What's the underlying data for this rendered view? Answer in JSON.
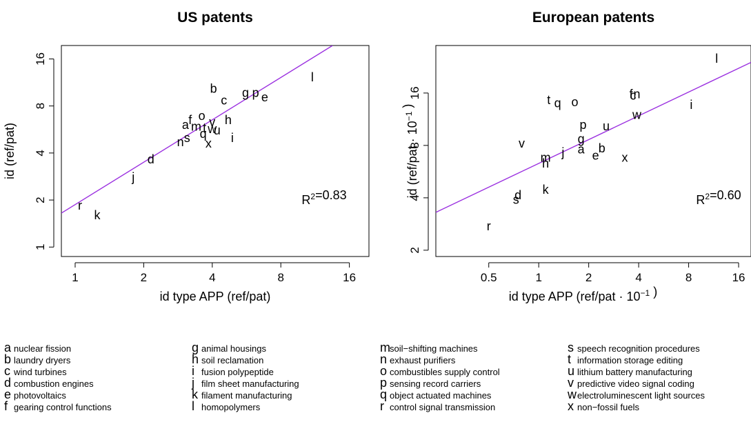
{
  "chart_data": [
    {
      "type": "scatter",
      "title": "US patents",
      "xlabel": "id type APP (ref/pat)",
      "ylabel": "id (ref/pat)",
      "x_scale": "log",
      "y_scale": "log",
      "xlim": [
        0.87,
        19.5
      ],
      "ylim": [
        0.87,
        19.5
      ],
      "xticks": [
        1,
        2,
        4,
        8,
        16
      ],
      "yticks": [
        1,
        2,
        4,
        8,
        16
      ],
      "xtick_labels": [
        "1",
        "2",
        "4",
        "8",
        "16"
      ],
      "ytick_labels": [
        "1",
        "2",
        "4",
        "8",
        "16"
      ],
      "annotation": "R²=0.83",
      "fit_color": "#9b30e0",
      "fit_line": [
        [
          0.87,
          1.65
        ],
        [
          13.5,
          19.5
        ]
      ],
      "points": [
        {
          "label": "a",
          "x": 3.05,
          "y": 6.05
        },
        {
          "label": "b",
          "x": 4.05,
          "y": 10.35
        },
        {
          "label": "c",
          "x": 4.5,
          "y": 8.7
        },
        {
          "label": "d",
          "x": 2.15,
          "y": 3.65
        },
        {
          "label": "e",
          "x": 6.8,
          "y": 9.1
        },
        {
          "label": "f",
          "x": 3.2,
          "y": 6.5
        },
        {
          "label": "g",
          "x": 5.6,
          "y": 9.7
        },
        {
          "label": "h",
          "x": 4.7,
          "y": 6.5
        },
        {
          "label": "i",
          "x": 4.9,
          "y": 5.0
        },
        {
          "label": "j",
          "x": 1.8,
          "y": 2.8
        },
        {
          "label": "k",
          "x": 1.25,
          "y": 1.6
        },
        {
          "label": "l",
          "x": 11.0,
          "y": 12.2
        },
        {
          "label": "m",
          "x": 3.4,
          "y": 5.9
        },
        {
          "label": "n",
          "x": 2.9,
          "y": 4.7
        },
        {
          "label": "o",
          "x": 3.6,
          "y": 6.9
        },
        {
          "label": "p",
          "x": 6.2,
          "y": 9.7
        },
        {
          "label": "q",
          "x": 3.65,
          "y": 5.3
        },
        {
          "label": "r",
          "x": 1.05,
          "y": 1.85
        },
        {
          "label": "s",
          "x": 3.1,
          "y": 5.0
        },
        {
          "label": "t",
          "x": 3.7,
          "y": 5.8
        },
        {
          "label": "u",
          "x": 4.2,
          "y": 5.6
        },
        {
          "label": "v",
          "x": 4.0,
          "y": 6.3
        },
        {
          "label": "w",
          "x": 4.0,
          "y": 5.7
        },
        {
          "label": "x",
          "x": 3.85,
          "y": 4.6
        }
      ]
    },
    {
      "type": "scatter",
      "title": "European patents",
      "xlabel": "id type APP (ref/pat · 10⁻¹ )",
      "ylabel": "id (ref/pat · 10⁻¹ )",
      "x_scale": "log",
      "y_scale": "log",
      "xlim": [
        0.24,
        19.0
      ],
      "ylim": [
        1.84,
        30.0
      ],
      "xticks": [
        0.5,
        1,
        2,
        4,
        8,
        16
      ],
      "yticks": [
        2,
        4,
        8,
        16
      ],
      "xtick_labels": [
        "0.5",
        "1",
        "2",
        "4",
        "8",
        "16"
      ],
      "ytick_labels": [
        "2",
        "4",
        "8",
        "16"
      ],
      "annotation": "R²=0.60",
      "fit_color": "#9b30e0",
      "fit_line": [
        [
          0.24,
          3.3
        ],
        [
          19.0,
          24.0
        ]
      ],
      "points": [
        {
          "label": "a",
          "x": 1.8,
          "y": 7.6
        },
        {
          "label": "b",
          "x": 2.4,
          "y": 7.7
        },
        {
          "label": "c",
          "x": 3.7,
          "y": 15.5
        },
        {
          "label": "d",
          "x": 0.75,
          "y": 4.15
        },
        {
          "label": "e",
          "x": 2.2,
          "y": 7.0
        },
        {
          "label": "f",
          "x": 3.6,
          "y": 15.8
        },
        {
          "label": "g",
          "x": 1.8,
          "y": 8.7
        },
        {
          "label": "h",
          "x": 1.1,
          "y": 6.3
        },
        {
          "label": "i",
          "x": 8.3,
          "y": 13.7
        },
        {
          "label": "j",
          "x": 1.4,
          "y": 7.3
        },
        {
          "label": "k",
          "x": 1.1,
          "y": 4.45
        },
        {
          "label": "l",
          "x": 11.8,
          "y": 25.2
        },
        {
          "label": "m",
          "x": 1.1,
          "y": 6.8
        },
        {
          "label": "n",
          "x": 3.9,
          "y": 15.8
        },
        {
          "label": "o",
          "x": 1.65,
          "y": 14.2
        },
        {
          "label": "p",
          "x": 1.85,
          "y": 10.5
        },
        {
          "label": "q",
          "x": 1.3,
          "y": 14.0
        },
        {
          "label": "r",
          "x": 0.5,
          "y": 2.75
        },
        {
          "label": "s",
          "x": 0.73,
          "y": 3.9
        },
        {
          "label": "t",
          "x": 1.15,
          "y": 14.6
        },
        {
          "label": "u",
          "x": 2.55,
          "y": 10.3
        },
        {
          "label": "v",
          "x": 0.79,
          "y": 8.2
        },
        {
          "label": "w",
          "x": 3.9,
          "y": 12.0
        },
        {
          "label": "x",
          "x": 3.3,
          "y": 6.8
        }
      ]
    }
  ],
  "legend": {
    "columns": [
      [
        {
          "letter": "a",
          "label": "nuclear fission"
        },
        {
          "letter": "b",
          "label": "laundry dryers"
        },
        {
          "letter": "c",
          "label": "wind turbines"
        },
        {
          "letter": "d",
          "label": "combustion engines"
        },
        {
          "letter": "e",
          "label": "photovoltaics"
        },
        {
          "letter": "f",
          "label": "gearing control functions"
        }
      ],
      [
        {
          "letter": "g",
          "label": "animal housings"
        },
        {
          "letter": "h",
          "label": "soil reclamation"
        },
        {
          "letter": "i",
          "label": "fusion polypeptide"
        },
        {
          "letter": "j",
          "label": "film sheet manufacturing"
        },
        {
          "letter": "k",
          "label": "filament manufacturing"
        },
        {
          "letter": "l",
          "label": "homopolymers"
        }
      ],
      [
        {
          "letter": "m",
          "label": "soil−shifting machines"
        },
        {
          "letter": "n",
          "label": "exhaust purifiers"
        },
        {
          "letter": "o",
          "label": "combustibles supply control"
        },
        {
          "letter": "p",
          "label": "sensing record carriers"
        },
        {
          "letter": "q",
          "label": "object actuated machines"
        },
        {
          "letter": "r",
          "label": "control signal transmission"
        }
      ],
      [
        {
          "letter": "s",
          "label": "speech recognition procedures"
        },
        {
          "letter": "t",
          "label": "information storage editing"
        },
        {
          "letter": "u",
          "label": "lithium battery manufacturing"
        },
        {
          "letter": "v",
          "label": "predictive video signal coding"
        },
        {
          "letter": "w",
          "label": "electroluminescent light sources"
        },
        {
          "letter": "x",
          "label": "non−fossil fuels"
        }
      ]
    ]
  }
}
